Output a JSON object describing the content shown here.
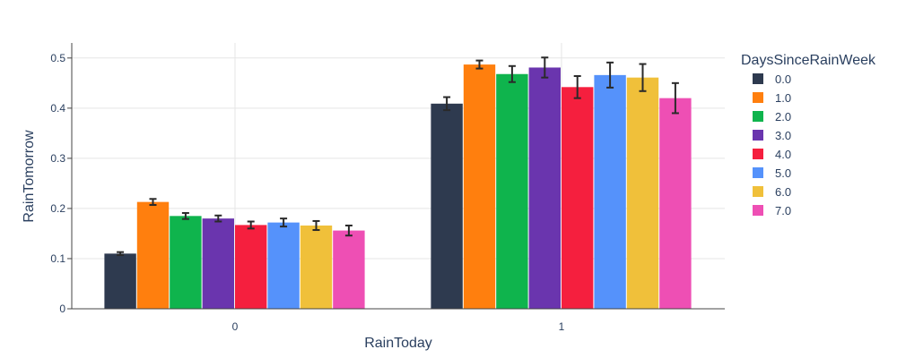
{
  "chart_data": {
    "type": "bar",
    "title": "",
    "xlabel": "RainToday",
    "ylabel": "RainTomorrow",
    "categories": [
      "0",
      "1"
    ],
    "ylim": [
      0,
      0.53
    ],
    "yticks": [
      0,
      0.1,
      0.2,
      0.3,
      0.4,
      0.5
    ],
    "ytick_labels": [
      "0",
      "0.1",
      "0.2",
      "0.3",
      "0.4",
      "0.5"
    ],
    "grid": true,
    "legend": {
      "title": "DaysSinceRainWeek",
      "placement": "right"
    },
    "error_bars": true,
    "series": [
      {
        "name": "0.0",
        "color": "#2e3a4f",
        "values": [
          0.11,
          0.409
        ],
        "err": [
          0.003,
          0.013
        ]
      },
      {
        "name": "1.0",
        "color": "#ff7f0e",
        "values": [
          0.213,
          0.487
        ],
        "err": [
          0.006,
          0.008
        ]
      },
      {
        "name": "2.0",
        "color": "#0fb44d",
        "values": [
          0.185,
          0.468
        ],
        "err": [
          0.006,
          0.016
        ]
      },
      {
        "name": "3.0",
        "color": "#6a35ae",
        "values": [
          0.18,
          0.481
        ],
        "err": [
          0.006,
          0.02
        ]
      },
      {
        "name": "4.0",
        "color": "#f51f3e",
        "values": [
          0.167,
          0.442
        ],
        "err": [
          0.007,
          0.022
        ]
      },
      {
        "name": "5.0",
        "color": "#5592fb",
        "values": [
          0.172,
          0.466
        ],
        "err": [
          0.008,
          0.025
        ]
      },
      {
        "name": "6.0",
        "color": "#f0c03a",
        "values": [
          0.166,
          0.461
        ],
        "err": [
          0.009,
          0.027
        ]
      },
      {
        "name": "7.0",
        "color": "#ee4fb4",
        "values": [
          0.156,
          0.42
        ],
        "err": [
          0.01,
          0.03
        ]
      }
    ]
  }
}
